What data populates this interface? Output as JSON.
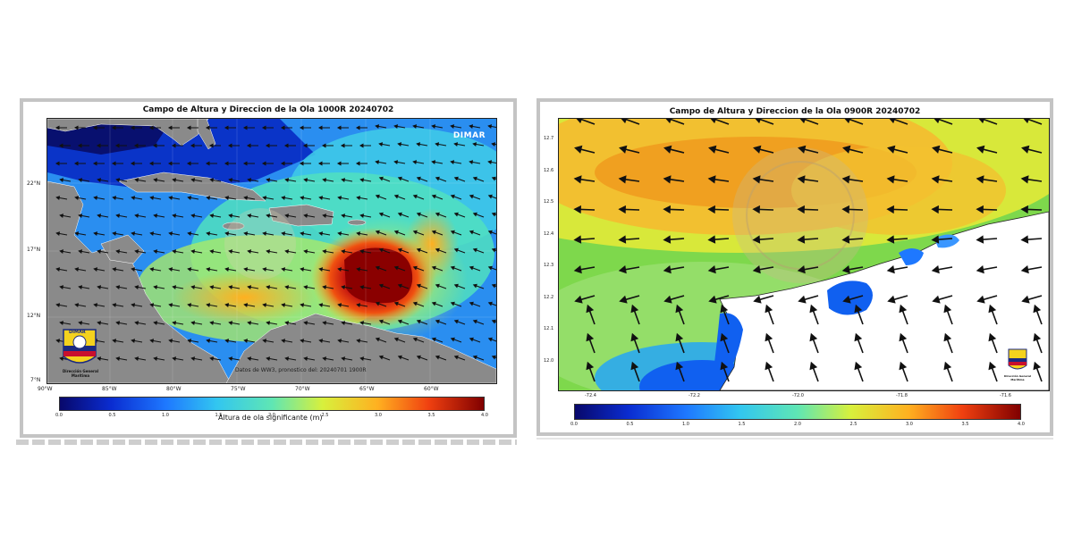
{
  "left_map": {
    "title": "Campo de Altura y Direccion de la Ola 1000R 20240702",
    "brand": "DIMAR",
    "caption": "Datos de WW3, pronostico del: 20240701 1900R",
    "x_ticks": [
      "90°W",
      "85°W",
      "80°W",
      "75°W",
      "70°W",
      "65°W",
      "60°W"
    ],
    "y_ticks": [
      "22°N",
      "17°N",
      "12°N",
      "7°N"
    ],
    "colorbar": {
      "label": "Altura de ola significante (m)",
      "ticks": [
        "0.0",
        "0.5",
        "1.0",
        "1.5",
        "2.0",
        "2.5",
        "3.0",
        "3.5",
        "4.0"
      ]
    },
    "logo_text": "DIMAR",
    "logo_caption": "Dirección General Marítima",
    "colors": {
      "land": "#8a8a8a",
      "low_wave": "#1040e0",
      "high_wave": "#8a0000"
    }
  },
  "right_map": {
    "title": "Campo de Altura y Direccion de la Ola 0900R 20240702",
    "x_ticks": [
      "-72.4",
      "-72.2",
      "-72.0",
      "-71.8",
      "-71.6"
    ],
    "y_ticks": [
      "12.7",
      "12.6",
      "12.5",
      "12.4",
      "12.3",
      "12.2",
      "12.1",
      "12.0"
    ],
    "colorbar": {
      "ticks": [
        "0.0",
        "0.5",
        "1.0",
        "1.5",
        "2.0",
        "2.5",
        "3.0",
        "3.5",
        "4.0"
      ]
    },
    "logo_caption": "Dirección General Marítima",
    "colors": {
      "land": "#ffffff",
      "sea_high": "#f0a020",
      "sea_low": "#1060f0"
    }
  }
}
